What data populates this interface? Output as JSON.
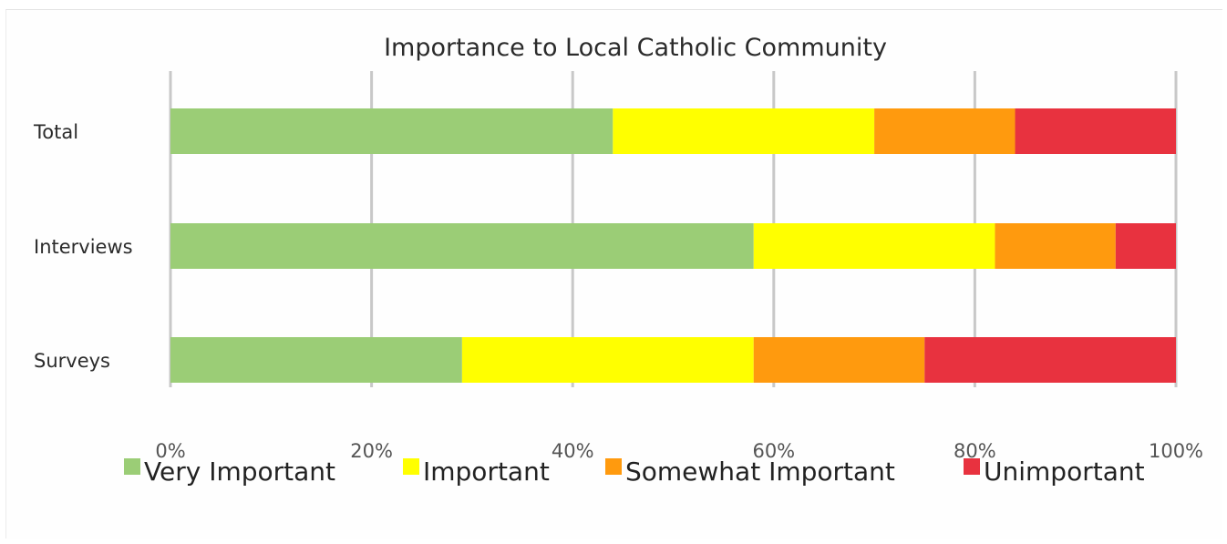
{
  "chart_data": {
    "type": "bar",
    "orientation": "horizontal",
    "stacked": "percent",
    "title": "Importance to Local Catholic Community",
    "categories": [
      "Total",
      "Interviews",
      "Surveys"
    ],
    "series": [
      {
        "name": "Very Important",
        "color": "#9bcd76",
        "values": [
          44,
          58,
          29
        ]
      },
      {
        "name": "Important",
        "color": "#ffff00",
        "values": [
          26,
          24,
          29
        ]
      },
      {
        "name": "Somewhat Important",
        "color": "#ff9a0e",
        "values": [
          14,
          12,
          17
        ]
      },
      {
        "name": "Unimportant",
        "color": "#e8323f",
        "values": [
          16,
          6,
          25
        ]
      }
    ],
    "x_ticks": [
      "0%",
      "20%",
      "40%",
      "60%",
      "80%",
      "100%"
    ],
    "xlim": [
      0,
      100
    ],
    "grid": true,
    "legend_position": "bottom"
  }
}
